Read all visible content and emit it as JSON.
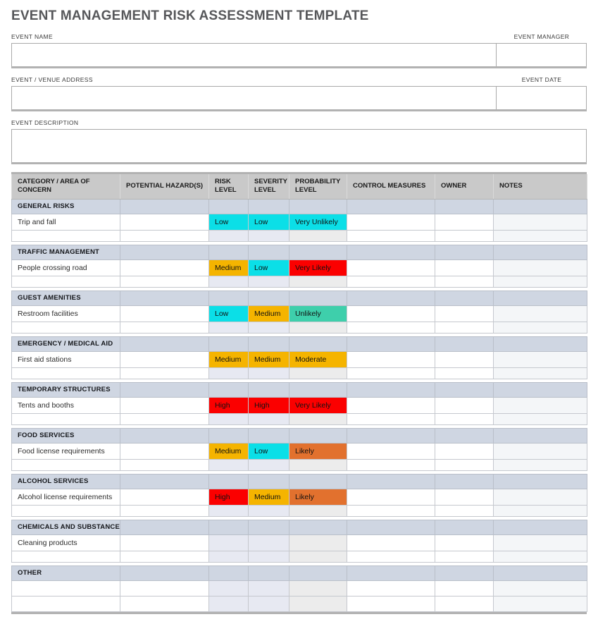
{
  "page": {
    "title": "EVENT MANAGEMENT RISK ASSESSMENT TEMPLATE"
  },
  "form": {
    "event_name": {
      "label": "EVENT NAME",
      "value": ""
    },
    "event_manager": {
      "label": "EVENT MANAGER",
      "value": ""
    },
    "event_venue_address": {
      "label": "EVENT / VENUE ADDRESS",
      "value": ""
    },
    "event_date": {
      "label": "EVENT DATE",
      "value": ""
    },
    "event_description": {
      "label": "EVENT DESCRIPTION",
      "value": ""
    }
  },
  "colors": {
    "header_bg": "#c9c9c9",
    "section_bg": "#cfd6e2",
    "tint_blue": "#e7e9f2",
    "tint_gray": "#ececec",
    "tint_notes": "#f4f6f8",
    "thick_border": "#b2b2b2"
  },
  "table": {
    "headers": [
      "CATEGORY / AREA OF CONCERN",
      "POTENTIAL HAZARD(S)",
      "RISK LEVEL",
      "SEVERITY LEVEL",
      "PROBABILITY LEVEL",
      "CONTROL MEASURES",
      "OWNER",
      "NOTES"
    ],
    "level_colors": {
      "low": "#0bdfe7",
      "medium": "#f5b400",
      "high": "#fb0000",
      "very_unlikely": "#0bdfe7",
      "unlikely": "#3ecfab",
      "moderate": "#f5b400",
      "likely": "#e2712e",
      "very_likely": "#fb0000"
    },
    "sections": [
      {
        "label": "GENERAL RISKS",
        "rows": [
          {
            "category": "Trip and fall",
            "hazard": "",
            "risk": "Low",
            "severity": "Low",
            "probability": "Very Unlikely",
            "control": "",
            "owner": "",
            "notes": ""
          },
          {
            "category": "",
            "hazard": "",
            "risk": "",
            "severity": "",
            "probability": "",
            "control": "",
            "owner": "",
            "notes": ""
          }
        ]
      },
      {
        "label": "TRAFFIC MANAGEMENT",
        "rows": [
          {
            "category": "People crossing road",
            "hazard": "",
            "risk": "Medium",
            "severity": "Low",
            "probability": "Very Likely",
            "control": "",
            "owner": "",
            "notes": ""
          },
          {
            "category": "",
            "hazard": "",
            "risk": "",
            "severity": "",
            "probability": "",
            "control": "",
            "owner": "",
            "notes": ""
          }
        ]
      },
      {
        "label": "GUEST AMENITIES",
        "rows": [
          {
            "category": "Restroom facilities",
            "hazard": "",
            "risk": "Low",
            "severity": "Medium",
            "probability": "Unlikely",
            "control": "",
            "owner": "",
            "notes": ""
          },
          {
            "category": "",
            "hazard": "",
            "risk": "",
            "severity": "",
            "probability": "",
            "control": "",
            "owner": "",
            "notes": ""
          }
        ]
      },
      {
        "label": "EMERGENCY / MEDICAL AID",
        "rows": [
          {
            "category": "First aid stations",
            "hazard": "",
            "risk": "Medium",
            "severity": "Medium",
            "probability": "Moderate",
            "control": "",
            "owner": "",
            "notes": ""
          },
          {
            "category": "",
            "hazard": "",
            "risk": "",
            "severity": "",
            "probability": "",
            "control": "",
            "owner": "",
            "notes": ""
          }
        ]
      },
      {
        "label": "TEMPORARY STRUCTURES",
        "rows": [
          {
            "category": "Tents and booths",
            "hazard": "",
            "risk": "High",
            "severity": "High",
            "probability": "Very Likely",
            "control": "",
            "owner": "",
            "notes": ""
          },
          {
            "category": "",
            "hazard": "",
            "risk": "",
            "severity": "",
            "probability": "",
            "control": "",
            "owner": "",
            "notes": ""
          }
        ]
      },
      {
        "label": "FOOD SERVICES",
        "rows": [
          {
            "category": "Food license requirements",
            "hazard": "",
            "risk": "Medium",
            "severity": "Low",
            "probability": "Likely",
            "control": "",
            "owner": "",
            "notes": ""
          },
          {
            "category": "",
            "hazard": "",
            "risk": "",
            "severity": "",
            "probability": "",
            "control": "",
            "owner": "",
            "notes": ""
          }
        ]
      },
      {
        "label": "ALCOHOL SERVICES",
        "rows": [
          {
            "category": "Alcohol license requirements",
            "hazard": "",
            "risk": "High",
            "severity": "Medium",
            "probability": "Likely",
            "control": "",
            "owner": "",
            "notes": ""
          },
          {
            "category": "",
            "hazard": "",
            "risk": "",
            "severity": "",
            "probability": "",
            "control": "",
            "owner": "",
            "notes": ""
          }
        ]
      },
      {
        "label": "CHEMICALS AND SUBSTANCES",
        "rows": [
          {
            "category": "Cleaning products",
            "hazard": "",
            "risk": "",
            "severity": "",
            "probability": "",
            "control": "",
            "owner": "",
            "notes": ""
          },
          {
            "category": "",
            "hazard": "",
            "risk": "",
            "severity": "",
            "probability": "",
            "control": "",
            "owner": "",
            "notes": ""
          }
        ]
      },
      {
        "label": "OTHER",
        "rows": [
          {
            "category": "",
            "hazard": "",
            "risk": "",
            "severity": "",
            "probability": "",
            "control": "",
            "owner": "",
            "notes": ""
          },
          {
            "category": "",
            "hazard": "",
            "risk": "",
            "severity": "",
            "probability": "",
            "control": "",
            "owner": "",
            "notes": ""
          }
        ]
      }
    ]
  }
}
